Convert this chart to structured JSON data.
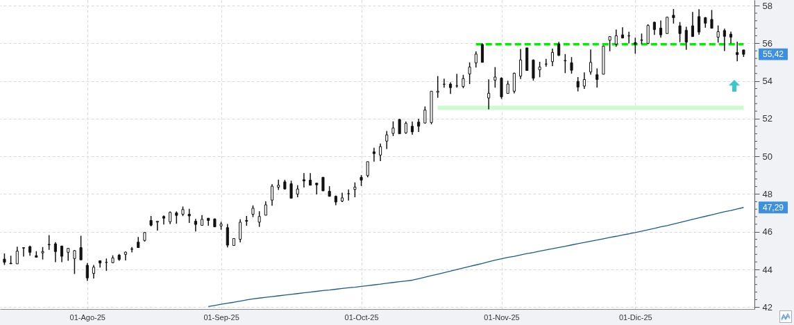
{
  "chart_data": {
    "type": "candlestick",
    "categories": [
      null,
      null,
      null,
      null,
      null,
      null,
      null,
      null,
      null,
      null,
      null,
      null,
      null,
      "01-Ago-25",
      null,
      null,
      null,
      null,
      null,
      null,
      null,
      null,
      null,
      null,
      null,
      null,
      null,
      null,
      null,
      null,
      null,
      null,
      null,
      null,
      "01-Sep-25",
      null,
      null,
      null,
      null,
      null,
      null,
      null,
      null,
      null,
      null,
      null,
      null,
      null,
      null,
      null,
      null,
      null,
      null,
      null,
      null,
      null,
      "01-Oct-25",
      null,
      null,
      null,
      null,
      null,
      null,
      null,
      null,
      null,
      null,
      null,
      null,
      null,
      null,
      null,
      null,
      null,
      null,
      null,
      null,
      null,
      "01-Nov-25",
      null,
      null,
      null,
      null,
      null,
      null,
      null,
      null,
      null,
      null,
      null,
      null,
      null,
      null,
      null,
      null,
      null,
      null,
      null,
      null,
      "01-Dic-25",
      null,
      null,
      null,
      null,
      null,
      null,
      null,
      null,
      null,
      null,
      null,
      null,
      null,
      null,
      null,
      null,
      null
    ],
    "ohlc": [
      [
        44.55,
        44.85,
        44.24,
        44.38
      ],
      [
        44.33,
        44.73,
        44.3,
        44.3
      ],
      [
        44.3,
        45.21,
        44.3,
        44.97
      ],
      [
        45.13,
        45.16,
        44.68,
        45.16
      ],
      [
        45.21,
        45.26,
        44.73,
        44.91
      ],
      [
        44.73,
        44.97,
        44.63,
        44.65
      ],
      [
        44.88,
        45.19,
        44.53,
        44.95
      ],
      [
        45.31,
        45.82,
        45.04,
        45.33
      ],
      [
        45.36,
        45.45,
        44.39,
        44.95
      ],
      [
        45.24,
        45.26,
        44.39,
        44.7
      ],
      [
        44.91,
        45.13,
        44.46,
        45.12
      ],
      [
        44.58,
        45.03,
        43.76,
        45.0
      ],
      [
        45.16,
        45.79,
        44.51,
        44.51
      ],
      [
        44.22,
        44.34,
        43.39,
        43.55
      ],
      [
        43.79,
        44.24,
        43.52,
        44.12
      ],
      [
        44.46,
        44.48,
        44.1,
        44.34
      ],
      [
        44.38,
        44.58,
        43.93,
        44.38
      ],
      [
        44.36,
        44.75,
        44.34,
        44.61
      ],
      [
        44.76,
        44.82,
        44.46,
        44.53
      ],
      [
        44.8,
        44.95,
        44.48,
        44.92
      ],
      [
        45.09,
        45.19,
        44.9,
        45.07
      ],
      [
        45.45,
        45.72,
        45.14,
        45.16
      ],
      [
        45.54,
        45.98,
        45.48,
        45.96
      ],
      [
        46.6,
        46.84,
        46.29,
        46.35
      ],
      [
        46.51,
        46.56,
        46.06,
        46.56
      ],
      [
        46.81,
        46.87,
        46.39,
        46.72
      ],
      [
        46.53,
        47.08,
        46.41,
        47.03
      ],
      [
        47.0,
        47.08,
        46.43,
        46.87
      ],
      [
        46.93,
        47.34,
        46.83,
        47.18
      ],
      [
        46.93,
        47.22,
        46.47,
        46.84
      ],
      [
        46.56,
        46.68,
        46.02,
        46.39
      ],
      [
        46.34,
        46.88,
        46.34,
        46.66
      ],
      [
        46.72,
        46.73,
        46.32,
        46.6
      ],
      [
        46.68,
        46.71,
        46.26,
        46.26
      ],
      [
        46.31,
        46.53,
        46.11,
        46.41
      ],
      [
        46.22,
        46.41,
        45.17,
        45.29
      ],
      [
        45.27,
        45.66,
        45.27,
        45.64
      ],
      [
        45.6,
        46.66,
        45.44,
        46.51
      ],
      [
        46.6,
        46.84,
        46.32,
        46.56
      ],
      [
        46.93,
        47.4,
        46.78,
        47.25
      ],
      [
        46.51,
        47.09,
        46.26,
        46.81
      ],
      [
        46.88,
        47.61,
        46.87,
        47.43
      ],
      [
        47.68,
        48.52,
        47.38,
        48.42
      ],
      [
        48.37,
        48.76,
        48.22,
        48.47
      ],
      [
        48.65,
        48.76,
        48.25,
        48.27
      ],
      [
        48.55,
        48.71,
        47.78,
        47.78
      ],
      [
        48.0,
        48.47,
        47.83,
        48.27
      ],
      [
        48.76,
        49.11,
        48.35,
        48.7
      ],
      [
        48.74,
        49.11,
        48.47,
        48.47
      ],
      [
        48.58,
        48.6,
        47.98,
        48.49
      ],
      [
        48.89,
        48.91,
        48.17,
        48.17
      ],
      [
        48.15,
        48.42,
        47.88,
        47.88
      ],
      [
        47.88,
        47.93,
        47.41,
        47.58
      ],
      [
        47.63,
        48.07,
        47.58,
        47.8
      ],
      [
        48.02,
        48.25,
        47.66,
        48.02
      ],
      [
        48.25,
        48.62,
        47.83,
        48.37
      ],
      [
        48.89,
        49.01,
        48.43,
        48.74
      ],
      [
        48.98,
        49.72,
        48.89,
        49.72
      ],
      [
        50.24,
        50.46,
        49.72,
        50.15
      ],
      [
        50.07,
        50.68,
        49.75,
        50.52
      ],
      [
        50.81,
        51.35,
        50.39,
        51.14
      ],
      [
        51.22,
        51.86,
        51.08,
        51.51
      ],
      [
        51.96,
        51.99,
        51.2,
        51.2
      ],
      [
        51.25,
        51.85,
        51.2,
        51.75
      ],
      [
        51.6,
        51.85,
        51.15,
        51.3
      ],
      [
        51.82,
        52.0,
        51.3,
        51.6
      ],
      [
        51.77,
        52.65,
        51.75,
        52.46
      ],
      [
        51.8,
        53.46,
        51.7,
        53.46
      ],
      [
        53.4,
        54.26,
        53.11,
        53.46
      ],
      [
        53.83,
        54.13,
        53.65,
        53.83
      ],
      [
        53.84,
        53.93,
        53.32,
        53.65
      ],
      [
        53.74,
        54.38,
        53.65,
        53.74
      ],
      [
        53.71,
        54.33,
        53.62,
        54.13
      ],
      [
        54.38,
        54.99,
        53.84,
        54.74
      ],
      [
        54.96,
        55.57,
        54.72,
        55.43
      ],
      [
        55.94,
        56.0,
        54.99,
        54.99
      ],
      [
        53.1,
        54.09,
        52.5,
        53.35
      ],
      [
        54.05,
        54.74,
        53.65,
        54.21
      ],
      [
        54.15,
        54.2,
        53.05,
        53.16
      ],
      [
        53.34,
        54.01,
        53.34,
        53.84
      ],
      [
        53.46,
        54.45,
        53.34,
        54.41
      ],
      [
        54.26,
        55.7,
        54.11,
        55.12
      ],
      [
        55.76,
        55.76,
        54.56,
        54.56
      ],
      [
        55.11,
        55.15,
        54.02,
        54.15
      ],
      [
        54.6,
        55.02,
        54.2,
        54.74
      ],
      [
        54.9,
        55.18,
        54.76,
        54.9
      ],
      [
        55.03,
        55.72,
        54.79,
        55.52
      ],
      [
        55.96,
        56.08,
        55.33,
        55.36
      ],
      [
        55.07,
        55.43,
        54.42,
        55.09
      ],
      [
        54.97,
        55.27,
        54.39,
        54.57
      ],
      [
        53.98,
        54.21,
        53.45,
        53.68
      ],
      [
        53.73,
        54.46,
        53.58,
        54.08
      ],
      [
        54.48,
        55.67,
        54.34,
        54.99
      ],
      [
        54.34,
        54.67,
        53.66,
        54.08
      ],
      [
        54.36,
        55.88,
        54.36,
        55.85
      ],
      [
        56.16,
        56.36,
        55.58,
        56.36
      ],
      [
        55.96,
        56.73,
        55.82,
        56.4
      ],
      [
        56.45,
        56.85,
        56.28,
        56.28
      ],
      [
        56.39,
        56.61,
        56.0,
        56.4
      ],
      [
        56.04,
        56.3,
        55.45,
        55.94
      ],
      [
        56.16,
        56.52,
        55.96,
        56.18
      ],
      [
        56.0,
        57.01,
        55.96,
        56.95
      ],
      [
        57.12,
        57.15,
        56.45,
        56.73
      ],
      [
        56.81,
        57.21,
        56.3,
        56.45
      ],
      [
        56.52,
        57.42,
        56.52,
        57.39
      ],
      [
        57.49,
        57.82,
        57.05,
        57.36
      ],
      [
        56.93,
        57.13,
        56.06,
        56.52
      ],
      [
        56.69,
        56.88,
        55.66,
        56.06
      ],
      [
        56.93,
        57.66,
        56.36,
        56.36
      ],
      [
        57.42,
        57.81,
        56.46,
        56.6
      ],
      [
        57.36,
        57.4,
        56.83,
        57.07
      ],
      [
        57.27,
        57.77,
        56.8,
        56.8
      ],
      [
        56.33,
        56.95,
        56.04,
        56.62
      ],
      [
        56.68,
        56.78,
        55.59,
        56.37
      ],
      [
        56.49,
        56.62,
        56.0,
        56.33
      ],
      [
        55.51,
        56.09,
        55.05,
        55.4
      ],
      [
        55.65,
        55.65,
        55.28,
        55.42
      ]
    ],
    "series": [
      {
        "type": "line",
        "color": "#1a5a8a",
        "values": [
          null,
          null,
          null,
          null,
          null,
          null,
          null,
          null,
          null,
          null,
          null,
          null,
          null,
          null,
          null,
          null,
          null,
          null,
          null,
          null,
          null,
          null,
          null,
          null,
          null,
          null,
          null,
          null,
          null,
          null,
          null,
          null,
          42.03,
          42.09,
          42.15,
          42.21,
          42.26,
          42.32,
          42.38,
          42.44,
          42.48,
          42.52,
          42.56,
          42.6,
          42.64,
          42.68,
          42.72,
          42.76,
          42.8,
          42.84,
          42.88,
          42.91,
          42.95,
          42.99,
          43.03,
          43.06,
          43.1,
          43.14,
          43.18,
          43.22,
          43.27,
          43.31,
          43.35,
          43.39,
          43.43,
          43.51,
          43.59,
          43.67,
          43.75,
          43.83,
          43.91,
          44.0,
          44.08,
          44.16,
          44.24,
          44.32,
          44.41,
          44.49,
          44.57,
          44.64,
          44.7,
          44.77,
          44.84,
          44.9,
          44.97,
          45.04,
          45.1,
          45.17,
          45.23,
          45.3,
          45.37,
          45.43,
          45.5,
          45.56,
          45.63,
          45.7,
          45.76,
          45.83,
          45.89,
          45.96,
          46.03,
          46.11,
          46.18,
          46.26,
          46.33,
          46.41,
          46.49,
          46.58,
          46.66,
          46.74,
          46.82,
          46.9,
          46.98,
          47.06,
          47.13,
          47.21,
          47.29
        ]
      },
      {
        "type": "line",
        "color": "#00ee00",
        "line_style": "dashed",
        "values": [
          null,
          null,
          null,
          null,
          null,
          null,
          null,
          null,
          null,
          null,
          null,
          null,
          null,
          null,
          null,
          null,
          null,
          null,
          null,
          null,
          null,
          null,
          null,
          null,
          null,
          null,
          null,
          null,
          null,
          null,
          null,
          null,
          null,
          null,
          null,
          null,
          null,
          null,
          null,
          null,
          null,
          null,
          null,
          null,
          null,
          null,
          null,
          null,
          null,
          null,
          null,
          null,
          null,
          null,
          null,
          null,
          null,
          null,
          null,
          null,
          null,
          null,
          null,
          null,
          null,
          null,
          null,
          null,
          null,
          null,
          null,
          null,
          null,
          null,
          55.95,
          55.95,
          55.95,
          55.95,
          55.95,
          55.95,
          55.95,
          55.95,
          55.95,
          55.95,
          55.95,
          55.95,
          55.95,
          55.95,
          55.95,
          55.95,
          55.95,
          55.95,
          55.95,
          55.95,
          55.95,
          55.95,
          55.95,
          55.95,
          55.95,
          55.95,
          55.95,
          55.95,
          55.95,
          55.95,
          55.95,
          55.95,
          55.95,
          55.95,
          55.95,
          55.95,
          55.95,
          55.95,
          55.95,
          55.95,
          55.95,
          55.95,
          55.95
        ]
      },
      {
        "type": "line",
        "color": "#ccfccc",
        "values": [
          null,
          null,
          null,
          null,
          null,
          null,
          null,
          null,
          null,
          null,
          null,
          null,
          null,
          null,
          null,
          null,
          null,
          null,
          null,
          null,
          null,
          null,
          null,
          null,
          null,
          null,
          null,
          null,
          null,
          null,
          null,
          null,
          null,
          null,
          null,
          null,
          null,
          null,
          null,
          null,
          null,
          null,
          null,
          null,
          null,
          null,
          null,
          null,
          null,
          null,
          null,
          null,
          null,
          null,
          null,
          null,
          null,
          null,
          null,
          null,
          null,
          null,
          null,
          null,
          null,
          null,
          null,
          null,
          52.58,
          52.58,
          52.58,
          52.58,
          52.58,
          52.58,
          52.58,
          52.58,
          52.58,
          52.58,
          52.58,
          52.58,
          52.58,
          52.58,
          52.58,
          52.58,
          52.58,
          52.58,
          52.58,
          52.58,
          52.58,
          52.58,
          52.58,
          52.58,
          52.58,
          52.58,
          52.58,
          52.58,
          52.58,
          52.58,
          52.58,
          52.58,
          52.58,
          52.58,
          52.58,
          52.58,
          52.58,
          52.58,
          52.58,
          52.58,
          52.58,
          52.58,
          52.58,
          52.58,
          52.58,
          52.58,
          52.58,
          52.58,
          52.58
        ]
      }
    ],
    "ylim": [
      41.9,
      58.3
    ],
    "yticks": [
      42,
      {
        "value": 42.4,
        "label": null
      },
      {
        "value": 42.8,
        "label": null
      },
      {
        "value": 43.2,
        "label": null
      },
      {
        "value": 43.6,
        "label": null
      },
      44,
      {
        "value": 44.4,
        "label": null
      },
      {
        "value": 44.8,
        "label": null
      },
      {
        "value": 45.2,
        "label": null
      },
      {
        "value": 45.6,
        "label": null
      },
      46,
      {
        "value": 46.4,
        "label": null
      },
      {
        "value": 46.8,
        "label": null
      },
      {
        "value": 47.2,
        "label": null
      },
      {
        "value": 47.6,
        "label": null
      },
      48,
      {
        "value": 48.4,
        "label": null
      },
      {
        "value": 48.8,
        "label": null
      },
      {
        "value": 49.2,
        "label": null
      },
      {
        "value": 49.6,
        "label": null
      },
      50,
      {
        "value": 50.4,
        "label": null
      },
      {
        "value": 50.8,
        "label": null
      },
      {
        "value": 51.2,
        "label": null
      },
      {
        "value": 51.6,
        "label": null
      },
      52,
      {
        "value": 52.4,
        "label": null
      },
      {
        "value": 52.8,
        "label": null
      },
      {
        "value": 53.2,
        "label": null
      },
      {
        "value": 53.6,
        "label": null
      },
      54,
      {
        "value": 54.4,
        "label": null
      },
      {
        "value": 54.8,
        "label": null
      },
      {
        "value": 55.2,
        "label": null
      },
      {
        "value": 55.6,
        "label": null
      },
      56,
      {
        "value": 56.4,
        "label": null
      },
      {
        "value": 56.8,
        "label": null
      },
      {
        "value": 57.2,
        "label": null
      },
      {
        "value": 57.6,
        "label": null
      },
      58
    ],
    "grid": true,
    "annotations": [
      "55,42",
      "47,29"
    ]
  }
}
